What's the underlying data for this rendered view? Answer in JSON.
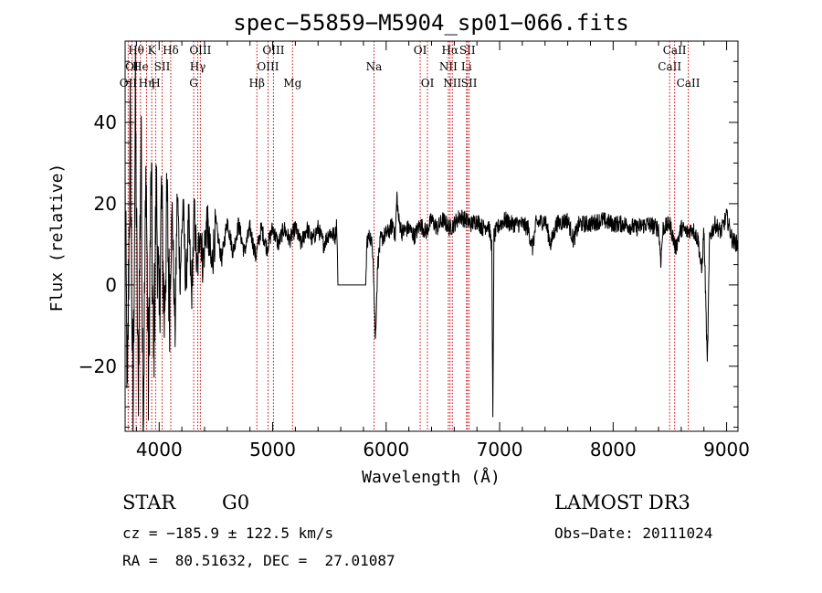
{
  "chart_data": {
    "type": "line",
    "title": "spec−55859−M5904_sp01−066.fits",
    "xlabel": "Wavelength (Å)",
    "ylabel": "Flux (relative)",
    "xlim": [
      3700,
      9100
    ],
    "ylim": [
      -36,
      60
    ],
    "x_ticks": [
      4000,
      5000,
      6000,
      7000,
      8000,
      9000
    ],
    "x_tick_labels": [
      "4000",
      "5000",
      "6000",
      "7000",
      "8000",
      "9000"
    ],
    "y_ticks": [
      -20,
      0,
      20,
      40
    ],
    "y_tick_labels": [
      "−20",
      "0",
      "20",
      "40"
    ],
    "grid": false,
    "series": [
      {
        "name": "flux",
        "anchors": [
          [
            3700,
            25
          ],
          [
            3720,
            -30
          ],
          [
            3745,
            40
          ],
          [
            3770,
            -35
          ],
          [
            3790,
            45
          ],
          [
            3815,
            -28
          ],
          [
            3840,
            38
          ],
          [
            3860,
            -33
          ],
          [
            3885,
            30
          ],
          [
            3905,
            -25
          ],
          [
            3930,
            28
          ],
          [
            3950,
            -20
          ],
          [
            3975,
            24
          ],
          [
            4000,
            -10
          ],
          [
            4020,
            22
          ],
          [
            4045,
            -8
          ],
          [
            4070,
            20
          ],
          [
            4090,
            -5
          ],
          [
            4115,
            18
          ],
          [
            4140,
            -12
          ],
          [
            4160,
            23
          ],
          [
            4185,
            2
          ],
          [
            4210,
            20
          ],
          [
            4235,
            0
          ],
          [
            4260,
            16
          ],
          [
            4285,
            -3
          ],
          [
            4310,
            18
          ],
          [
            4335,
            2
          ],
          [
            4360,
            15
          ],
          [
            4385,
            5
          ],
          [
            4420,
            16
          ],
          [
            4460,
            4
          ],
          [
            4500,
            15
          ],
          [
            4550,
            6
          ],
          [
            4600,
            16
          ],
          [
            4650,
            8
          ],
          [
            4700,
            15
          ],
          [
            4750,
            8
          ],
          [
            4800,
            14
          ],
          [
            4850,
            7
          ],
          [
            4900,
            14
          ],
          [
            4950,
            9
          ],
          [
            5000,
            14
          ],
          [
            5050,
            10
          ],
          [
            5100,
            14
          ],
          [
            5150,
            11
          ],
          [
            5200,
            14
          ],
          [
            5250,
            10
          ],
          [
            5300,
            14
          ],
          [
            5350,
            11
          ],
          [
            5400,
            14
          ],
          [
            5450,
            10
          ],
          [
            5500,
            13
          ],
          [
            5550,
            12
          ],
          [
            5565,
            15
          ],
          [
            5575,
            0
          ],
          [
            5820,
            0
          ],
          [
            5830,
            11
          ],
          [
            5860,
            12
          ],
          [
            5885,
            8
          ],
          [
            5905,
            -14
          ],
          [
            5925,
            5
          ],
          [
            5950,
            11
          ],
          [
            5980,
            12
          ],
          [
            6020,
            13
          ],
          [
            6060,
            15
          ],
          [
            6080,
            12
          ],
          [
            6095,
            22
          ],
          [
            6110,
            16
          ],
          [
            6140,
            13
          ],
          [
            6200,
            14
          ],
          [
            6250,
            12
          ],
          [
            6300,
            15
          ],
          [
            6350,
            13
          ],
          [
            6400,
            16
          ],
          [
            6450,
            14
          ],
          [
            6500,
            16
          ],
          [
            6560,
            14
          ],
          [
            6600,
            15
          ],
          [
            6650,
            17
          ],
          [
            6700,
            16
          ],
          [
            6750,
            15
          ],
          [
            6800,
            16
          ],
          [
            6850,
            14
          ],
          [
            6900,
            15
          ],
          [
            6930,
            10
          ],
          [
            6940,
            -34
          ],
          [
            6950,
            12
          ],
          [
            7000,
            15
          ],
          [
            7050,
            16
          ],
          [
            7100,
            15
          ],
          [
            7200,
            15
          ],
          [
            7250,
            14
          ],
          [
            7290,
            9
          ],
          [
            7320,
            15
          ],
          [
            7400,
            16
          ],
          [
            7450,
            10
          ],
          [
            7500,
            15
          ],
          [
            7600,
            16
          ],
          [
            7650,
            11
          ],
          [
            7700,
            15
          ],
          [
            7800,
            15
          ],
          [
            7900,
            16
          ],
          [
            8000,
            15
          ],
          [
            8100,
            15
          ],
          [
            8200,
            14
          ],
          [
            8300,
            15
          ],
          [
            8400,
            14
          ],
          [
            8420,
            6
          ],
          [
            8440,
            14
          ],
          [
            8500,
            15
          ],
          [
            8550,
            9
          ],
          [
            8600,
            14
          ],
          [
            8650,
            13
          ],
          [
            8700,
            14
          ],
          [
            8750,
            11
          ],
          [
            8780,
            3
          ],
          [
            8800,
            14
          ],
          [
            8830,
            -20
          ],
          [
            8850,
            12
          ],
          [
            8900,
            15
          ],
          [
            8950,
            13
          ],
          [
            9000,
            17
          ],
          [
            9050,
            11
          ],
          [
            9100,
            10
          ]
        ]
      }
    ],
    "lines": [
      {
        "wave": 3797,
        "label": "Hθ",
        "row": 0
      },
      {
        "wave": 3727,
        "label": "OII",
        "row": 2
      },
      {
        "wave": 3760,
        "label": "OI",
        "row": 1
      },
      {
        "wave": 3835,
        "label": "He",
        "row": 1
      },
      {
        "wave": 3889,
        "label": "Hη",
        "row": 2
      },
      {
        "wave": 3934,
        "label": "K",
        "row": 0
      },
      {
        "wave": 3969,
        "label": "H",
        "row": 2
      },
      {
        "wave": 4026,
        "label": "SII",
        "row": 1
      },
      {
        "wave": 4102,
        "label": "Hδ",
        "row": 0
      },
      {
        "wave": 4304,
        "label": "G",
        "row": 2
      },
      {
        "wave": 4340,
        "label": "Hγ",
        "row": 1
      },
      {
        "wave": 4363,
        "label": "OIII",
        "row": 0
      },
      {
        "wave": 4861,
        "label": "Hβ",
        "row": 2
      },
      {
        "wave": 4959,
        "label": "OIII",
        "row": 1
      },
      {
        "wave": 5007,
        "label": "OIII",
        "row": 0
      },
      {
        "wave": 5175,
        "label": "Mg",
        "row": 2
      },
      {
        "wave": 5893,
        "label": "Na",
        "row": 1
      },
      {
        "wave": 6300,
        "label": "OI",
        "row": 0
      },
      {
        "wave": 6364,
        "label": "OI",
        "row": 2
      },
      {
        "wave": 6548,
        "label": "NII",
        "row": 1
      },
      {
        "wave": 6563,
        "label": "Hα",
        "row": 0
      },
      {
        "wave": 6583,
        "label": "NII",
        "row": 2
      },
      {
        "wave": 6708,
        "label": "Li",
        "row": 1
      },
      {
        "wave": 6716,
        "label": "SII",
        "row": 0
      },
      {
        "wave": 6731,
        "label": "SII",
        "row": 2
      },
      {
        "wave": 8498,
        "label": "CaII",
        "row": 1
      },
      {
        "wave": 8542,
        "label": "CaII",
        "row": 0
      },
      {
        "wave": 8662,
        "label": "CaII",
        "row": 2
      }
    ]
  },
  "info": {
    "object_class": "STAR",
    "subclass": "G0",
    "survey": "LAMOST DR3",
    "cz": "cz = −185.9 ± 122.5 km/s",
    "obs_date": "Obs−Date: 20111024",
    "coords": "RA =  80.51632, DEC =  27.01087"
  }
}
